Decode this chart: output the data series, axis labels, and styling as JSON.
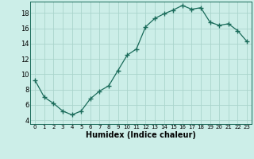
{
  "x": [
    0,
    1,
    2,
    3,
    4,
    5,
    6,
    7,
    8,
    9,
    10,
    11,
    12,
    13,
    14,
    15,
    16,
    17,
    18,
    19,
    20,
    21,
    22,
    23
  ],
  "y": [
    9.2,
    7.0,
    6.2,
    5.2,
    4.7,
    5.2,
    6.8,
    7.8,
    8.5,
    10.5,
    12.5,
    13.3,
    16.2,
    17.3,
    17.9,
    18.4,
    19.0,
    18.5,
    18.7,
    16.8,
    16.4,
    16.6,
    15.7,
    14.3
  ],
  "xlabel": "Humidex (Indice chaleur)",
  "xlim": [
    -0.5,
    23.5
  ],
  "ylim": [
    3.5,
    19.5
  ],
  "xticks": [
    0,
    1,
    2,
    3,
    4,
    5,
    6,
    7,
    8,
    9,
    10,
    11,
    12,
    13,
    14,
    15,
    16,
    17,
    18,
    19,
    20,
    21,
    22,
    23
  ],
  "yticks": [
    4,
    6,
    8,
    10,
    12,
    14,
    16,
    18
  ],
  "line_color": "#1a6b5a",
  "marker": "+",
  "marker_size": 4,
  "marker_edge_width": 1.0,
  "line_width": 0.9,
  "bg_color": "#cceee8",
  "grid_color": "#aad4cc",
  "xlabel_fontsize": 7,
  "tick_fontsize_x": 5,
  "tick_fontsize_y": 6
}
